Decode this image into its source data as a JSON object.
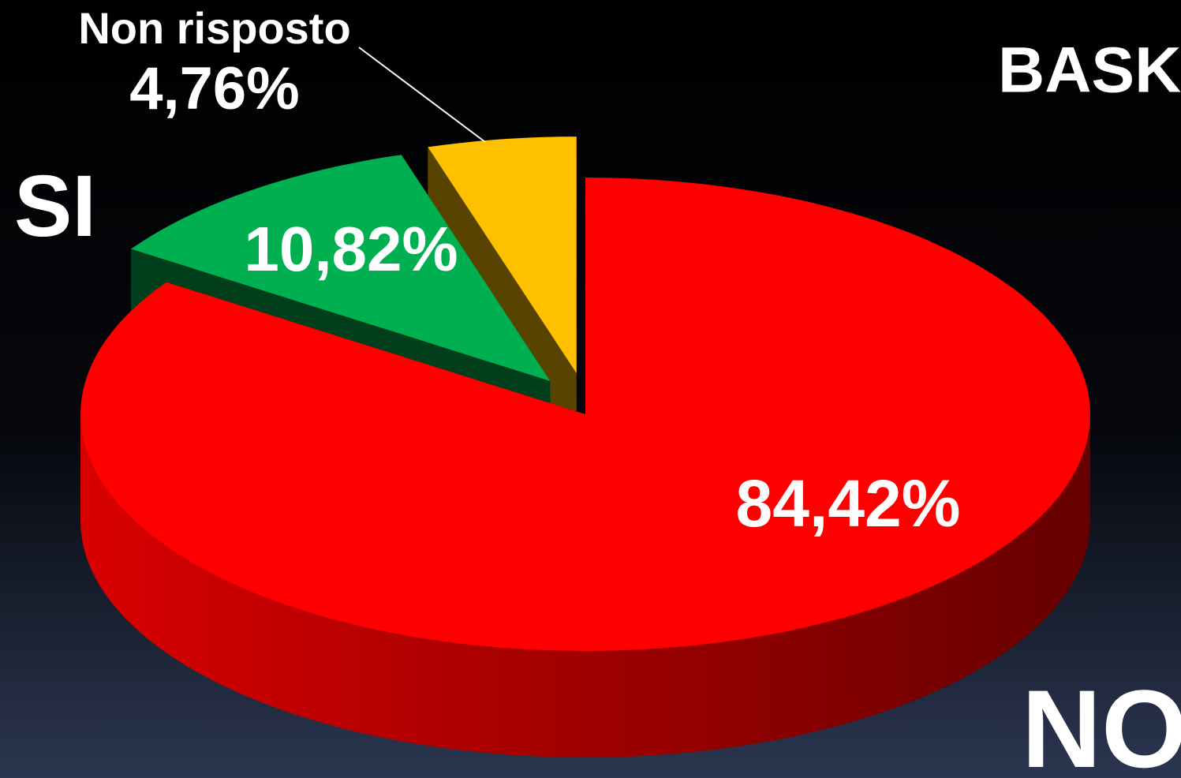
{
  "chart_data": {
    "type": "pie",
    "title": "BASK",
    "categories": [
      "NO",
      "SI",
      "Non risposto"
    ],
    "values": [
      84.42,
      10.82,
      4.76
    ],
    "value_labels": [
      "84,42%",
      "10,82%",
      "4,76%"
    ],
    "colors": [
      "#ff0000",
      "#00b050",
      "#ffc000"
    ]
  }
}
